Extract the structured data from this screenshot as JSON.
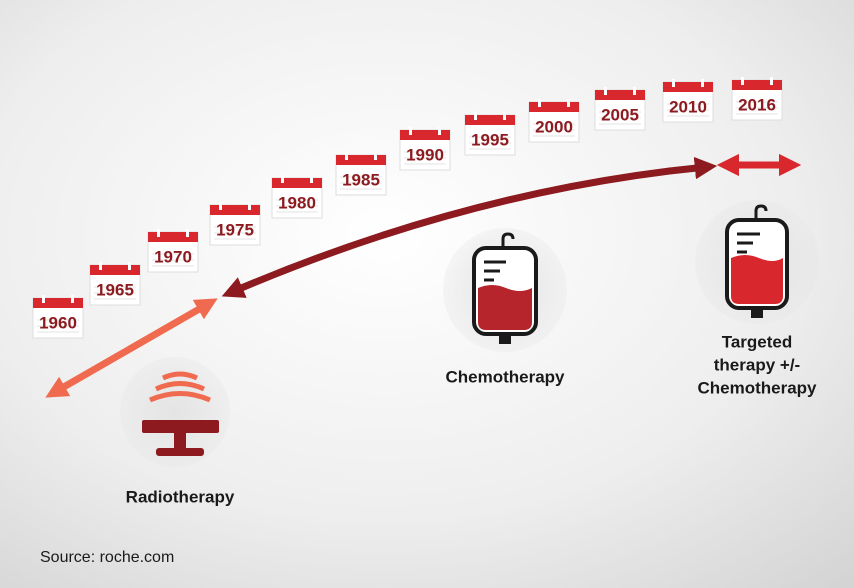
{
  "timeline": {
    "years": [
      "1960",
      "1965",
      "1970",
      "1975",
      "1980",
      "1985",
      "1990",
      "1995",
      "2000",
      "2005",
      "2010",
      "2016"
    ]
  },
  "therapies": [
    {
      "label": "Radiotherapy"
    },
    {
      "label": "Chemotherapy"
    },
    {
      "label_lines": [
        "Targeted",
        "therapy +/-",
        "Chemotherapy"
      ]
    }
  ],
  "source": "Source: roche.com"
}
